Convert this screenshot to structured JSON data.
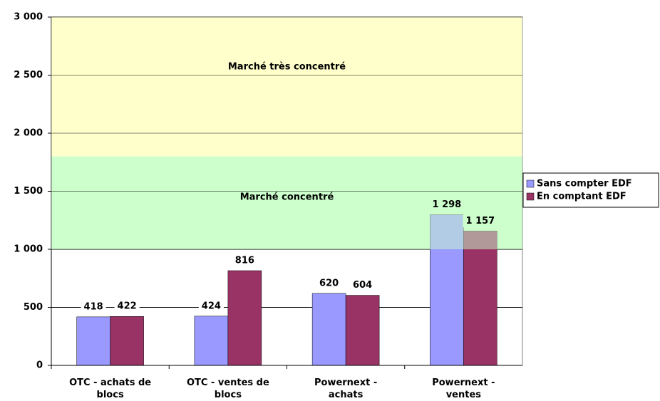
{
  "chart_data": {
    "type": "bar",
    "categories": [
      "OTC - achats de blocs",
      "OTC - ventes de blocs",
      "Powernext - achats",
      "Powernext - ventes"
    ],
    "series": [
      {
        "name": "Sans compter EDF",
        "color": "#9999ff",
        "values": [
          418,
          424,
          620,
          1298
        ],
        "value_labels": [
          "418",
          "424",
          "620",
          "1 298"
        ]
      },
      {
        "name": "En comptant EDF",
        "color": "#993366",
        "values": [
          422,
          816,
          604,
          1157
        ],
        "value_labels": [
          "422",
          "816",
          "604",
          "1 157"
        ]
      }
    ],
    "bands": [
      {
        "label": "Marché très concentré",
        "range": [
          1800,
          3000
        ],
        "color": "#ffffcc"
      },
      {
        "label": "Marché concentré",
        "range": [
          1000,
          1800
        ],
        "color": "#ccffcc"
      }
    ],
    "ylim": [
      0,
      3000
    ],
    "yticks": [
      0,
      500,
      {
        "value": 1000,
        "label": "1 000"
      },
      {
        "value": 1500,
        "label": "1 500"
      },
      {
        "value": 2000,
        "label": "2 000"
      },
      {
        "value": 2500,
        "label": "2 500"
      },
      {
        "value": 3000,
        "label": "3 000"
      }
    ],
    "grid": true,
    "legend": "right"
  }
}
